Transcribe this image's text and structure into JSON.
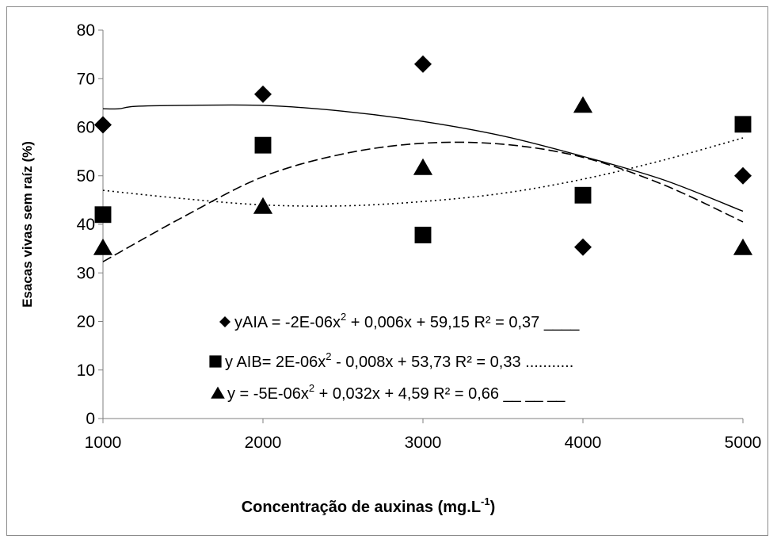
{
  "chart_data": {
    "type": "scatter",
    "xlabel": "Concentração de auxinas (mg.L",
    "xlabel_sup": "-1",
    "xlabel_end": ")",
    "ylabel": "Esacas vivas sem raíz (%)",
    "xlim": [
      1000,
      5000
    ],
    "ylim": [
      0,
      80
    ],
    "x_ticks": [
      "1000",
      "2000",
      "3000",
      "4000",
      "5000"
    ],
    "y_ticks": [
      "0",
      "10",
      "20",
      "30",
      "40",
      "50",
      "60",
      "70",
      "80"
    ],
    "grid": false,
    "series": [
      {
        "name": "AIA",
        "marker": "diamond",
        "x": [
          1000,
          2000,
          3000,
          4000,
          5000
        ],
        "y": [
          60.5,
          66.8,
          73,
          35.3,
          50
        ],
        "trend": "solid",
        "trend_points": [
          [
            1000,
            63.8
          ],
          [
            1100,
            63.8
          ],
          [
            1200,
            64.3
          ],
          [
            1500,
            64.5
          ],
          [
            2000,
            64.5
          ],
          [
            2500,
            63.3
          ],
          [
            3000,
            61.2
          ],
          [
            3500,
            58.2
          ],
          [
            4000,
            54
          ],
          [
            4500,
            49.2
          ],
          [
            5000,
            42.7
          ]
        ]
      },
      {
        "name": "AIB",
        "marker": "square",
        "x": [
          1000,
          2000,
          3000,
          4000,
          5000
        ],
        "y": [
          42,
          56.3,
          37.8,
          46,
          60.6
        ],
        "trend": "dotted",
        "trend_points": [
          [
            1000,
            47
          ],
          [
            1500,
            45.3
          ],
          [
            2000,
            44
          ],
          [
            2500,
            43.8
          ],
          [
            3000,
            44.7
          ],
          [
            3500,
            46.4
          ],
          [
            4000,
            49.3
          ],
          [
            4500,
            53.2
          ],
          [
            5000,
            57.8
          ]
        ]
      },
      {
        "name": "",
        "marker": "triangle",
        "x": [
          1000,
          2000,
          3000,
          4000,
          5000
        ],
        "y": [
          35.2,
          43.7,
          51.7,
          64.5,
          35.2
        ],
        "trend": "dashed",
        "trend_points": [
          [
            1000,
            32.3
          ],
          [
            1500,
            41.5
          ],
          [
            2000,
            49.8
          ],
          [
            2500,
            54.5
          ],
          [
            3000,
            56.7
          ],
          [
            3500,
            56.5
          ],
          [
            4000,
            53.8
          ],
          [
            4500,
            48.2
          ],
          [
            5000,
            40.5
          ]
        ]
      }
    ],
    "legend": [
      {
        "marker": "diamond",
        "text": "yAIA = -2E-06x",
        "sup": "2",
        "rest": " + 0,006x + 59,15 R² = 0,37 ____"
      },
      {
        "marker": "square",
        "text": "y AIB= 2E-06x",
        "sup": "2",
        "rest": " - 0,008x + 53,73  R² = 0,33 ..........."
      },
      {
        "marker": "triangle",
        "text": " y = -5E-06x",
        "sup": "2",
        "rest": " + 0,032x + 4,59  R² = 0,66 __ __ __"
      }
    ],
    "legend_placement": "bottom-center inside plot"
  }
}
